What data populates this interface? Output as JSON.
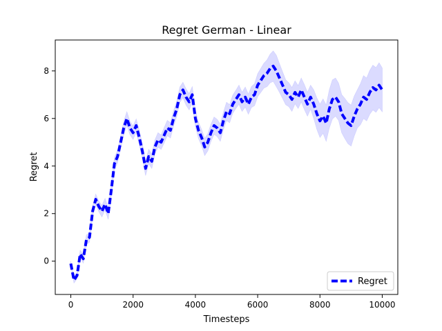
{
  "chart_data": {
    "type": "line",
    "title": "Regret German - Linear",
    "xlabel": "Timesteps",
    "ylabel": "Regret",
    "xlim": [
      -500,
      10500
    ],
    "ylim": [
      -1.4,
      9.3
    ],
    "xticks": [
      0,
      2000,
      4000,
      6000,
      8000,
      10000
    ],
    "yticks": [
      0,
      2,
      4,
      6,
      8
    ],
    "grid": false,
    "legend_position": "lower-right",
    "series": [
      {
        "name": "Regret",
        "color": "#0000ff",
        "band_color": "#ccccff",
        "style": "dashed",
        "x": [
          0,
          100,
          200,
          300,
          400,
          500,
          600,
          700,
          800,
          900,
          1000,
          1100,
          1200,
          1300,
          1400,
          1500,
          1600,
          1700,
          1800,
          1900,
          2000,
          2100,
          2200,
          2300,
          2400,
          2500,
          2600,
          2700,
          2800,
          2900,
          3000,
          3100,
          3200,
          3300,
          3400,
          3500,
          3600,
          3700,
          3800,
          3900,
          4000,
          4100,
          4200,
          4300,
          4400,
          4500,
          4600,
          4700,
          4800,
          4900,
          5000,
          5100,
          5200,
          5300,
          5400,
          5500,
          5600,
          5700,
          5800,
          5900,
          6000,
          6100,
          6200,
          6300,
          6400,
          6500,
          6600,
          6700,
          6800,
          6900,
          7000,
          7100,
          7200,
          7300,
          7400,
          7500,
          7600,
          7700,
          7800,
          7900,
          8000,
          8100,
          8200,
          8300,
          8400,
          8500,
          8600,
          8700,
          8800,
          8900,
          9000,
          9100,
          9200,
          9300,
          9400,
          9500,
          9600,
          9700,
          9800,
          9900,
          10000
        ],
        "y": [
          -0.1,
          -0.8,
          -0.6,
          0.3,
          0.1,
          0.9,
          1.0,
          2.1,
          2.6,
          2.3,
          2.1,
          2.4,
          2.0,
          3.0,
          4.1,
          4.4,
          5.0,
          5.6,
          6.0,
          5.6,
          5.4,
          5.7,
          5.2,
          4.6,
          3.9,
          4.4,
          4.2,
          4.8,
          5.1,
          5.0,
          5.3,
          5.6,
          5.5,
          6.0,
          6.4,
          7.0,
          7.2,
          6.9,
          6.7,
          7.0,
          6.0,
          5.5,
          5.2,
          4.8,
          5.0,
          5.4,
          5.7,
          5.6,
          5.4,
          5.9,
          6.3,
          6.2,
          6.6,
          6.8,
          7.0,
          6.7,
          6.9,
          6.6,
          6.9,
          7.0,
          7.4,
          7.6,
          7.8,
          7.9,
          8.1,
          8.2,
          8.0,
          7.7,
          7.4,
          7.1,
          7.0,
          6.8,
          7.1,
          6.9,
          7.2,
          6.9,
          6.6,
          6.9,
          6.6,
          6.2,
          5.9,
          6.1,
          5.8,
          6.4,
          6.8,
          6.9,
          6.7,
          6.2,
          6.0,
          5.8,
          5.7,
          6.1,
          6.4,
          6.6,
          6.9,
          6.8,
          7.1,
          7.3,
          7.2,
          7.4,
          7.2
        ],
        "band": [
          0.1,
          0.12,
          0.14,
          0.16,
          0.18,
          0.2,
          0.2,
          0.22,
          0.22,
          0.22,
          0.24,
          0.24,
          0.24,
          0.26,
          0.26,
          0.26,
          0.26,
          0.28,
          0.28,
          0.28,
          0.28,
          0.28,
          0.3,
          0.3,
          0.3,
          0.3,
          0.3,
          0.3,
          0.3,
          0.3,
          0.32,
          0.32,
          0.32,
          0.32,
          0.32,
          0.32,
          0.32,
          0.34,
          0.34,
          0.34,
          0.34,
          0.34,
          0.34,
          0.36,
          0.36,
          0.36,
          0.36,
          0.36,
          0.36,
          0.36,
          0.38,
          0.38,
          0.38,
          0.38,
          0.4,
          0.4,
          0.42,
          0.42,
          0.44,
          0.46,
          0.48,
          0.5,
          0.52,
          0.56,
          0.6,
          0.64,
          0.66,
          0.6,
          0.56,
          0.52,
          0.5,
          0.5,
          0.48,
          0.48,
          0.5,
          0.52,
          0.5,
          0.5,
          0.6,
          0.66,
          0.7,
          0.72,
          0.76,
          0.8,
          0.82,
          0.8,
          0.78,
          0.8,
          0.84,
          0.86,
          0.86,
          0.84,
          0.8,
          0.86,
          0.9,
          0.9,
          0.92,
          0.94,
          0.94,
          0.94,
          0.92
        ]
      }
    ]
  }
}
